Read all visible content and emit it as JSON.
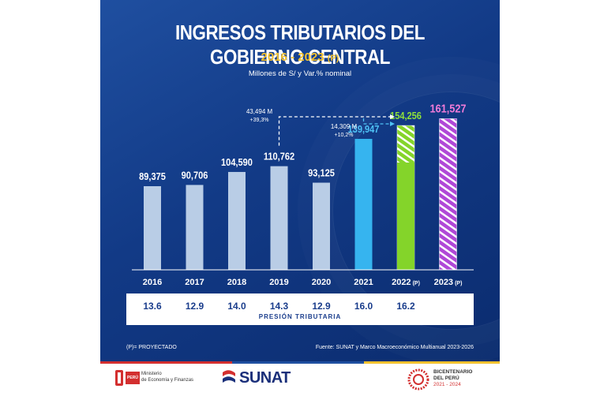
{
  "title": "INGRESOS TRIBUTARIOS DEL GOBIERNO CENTRAL",
  "subtitle_years": "2016 - 2023",
  "subtitle_mark": "(P)",
  "units": "Millones de S/ y Var.% nominal",
  "colors": {
    "historical": "#b9cde6",
    "y2021": "#36b4ef",
    "y2022": "#84d42a",
    "y2023": "#b048d7",
    "value_label": "#ffffff",
    "value_2021": "#4fc3f7",
    "value_2022": "#8ee03a",
    "value_2023": "#f07bd8"
  },
  "chart_data": {
    "type": "bar",
    "categories": [
      "2016",
      "2017",
      "2018",
      "2019",
      "2020",
      "2021",
      "2022",
      "2023"
    ],
    "category_suffix": [
      "",
      "",
      "",
      "",
      "",
      "",
      "(P)",
      "(P)"
    ],
    "values": [
      89375,
      90706,
      104590,
      110762,
      93125,
      139947,
      154256,
      161527
    ],
    "value_labels": [
      "89,375",
      "90,706",
      "104,590",
      "110,762",
      "93,125",
      "139,947",
      "154,256",
      "161,527"
    ],
    "projected": [
      false,
      false,
      false,
      false,
      false,
      false,
      true,
      true
    ],
    "annotations": [
      {
        "amount": "43,494 M",
        "change": "+39,3%",
        "from": "2019",
        "to": "2022"
      },
      {
        "amount": "14,309 M",
        "change": "+10,2%",
        "from": "2021",
        "to": "2022"
      }
    ]
  },
  "pressure": {
    "label": "PRESIÓN TRIBUTARIA",
    "values": [
      "13.6",
      "12.9",
      "14.0",
      "14.3",
      "12.9",
      "16.0",
      "16.2",
      ""
    ]
  },
  "footer": {
    "note": "(P)= PROYECTADO",
    "source": "Fuente: SUNAT y Marco Macroeconómico Multianual 2023-2026"
  },
  "logos": {
    "peru": "PERÚ",
    "ministry_line1": "Ministerio",
    "ministry_line2": "de Economía y Finanzas",
    "sunat": "SUNAT",
    "bicentenario_line1": "BICENTENARIO",
    "bicentenario_line2": "DEL PERÚ",
    "bicentenario_years": "2021 - 2024"
  }
}
